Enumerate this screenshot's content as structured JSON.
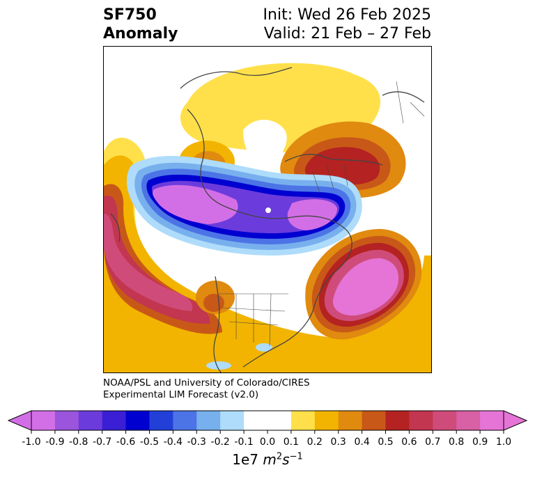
{
  "title": {
    "variable": "SF750",
    "kind": "Anomaly",
    "init": "Init: Wed 26 Feb 2025",
    "valid": "Valid: 21 Feb – 27 Feb"
  },
  "credit": {
    "line1": "NOAA/PSL and University of Colorado/CIRES",
    "line2": "Experimental LIM Forecast (v2.0)"
  },
  "colorbar": {
    "ticks": [
      "-1.0",
      "-0.9",
      "-0.8",
      "-0.7",
      "-0.6",
      "-0.5",
      "-0.4",
      "-0.3",
      "-0.2",
      "-0.1",
      "0.0",
      "0.1",
      "0.2",
      "0.3",
      "0.4",
      "0.5",
      "0.6",
      "0.7",
      "0.8",
      "0.9",
      "1.0"
    ],
    "colors": [
      "#d36fe6",
      "#9a55dc",
      "#6c3bdc",
      "#3a1fd4",
      "#0000d0",
      "#2240d8",
      "#4c74e6",
      "#78b0ee",
      "#aedcfa",
      "#ffffff",
      "#ffffff",
      "#ffe04a",
      "#f2b400",
      "#e08a10",
      "#c85818",
      "#b42222",
      "#c23650",
      "#cf4c7a",
      "#d860a4",
      "#e574d6"
    ],
    "low_extend_color": "#d36fe6",
    "high_extend_color": "#e574d6",
    "units_prefix": "1e7",
    "units_base": "m",
    "units_exp1": "2",
    "units_base2": "s",
    "units_exp2": "−1"
  },
  "map": {
    "projection": "north-polar-stereographic",
    "field": "750-hPa streamfunction anomaly"
  }
}
